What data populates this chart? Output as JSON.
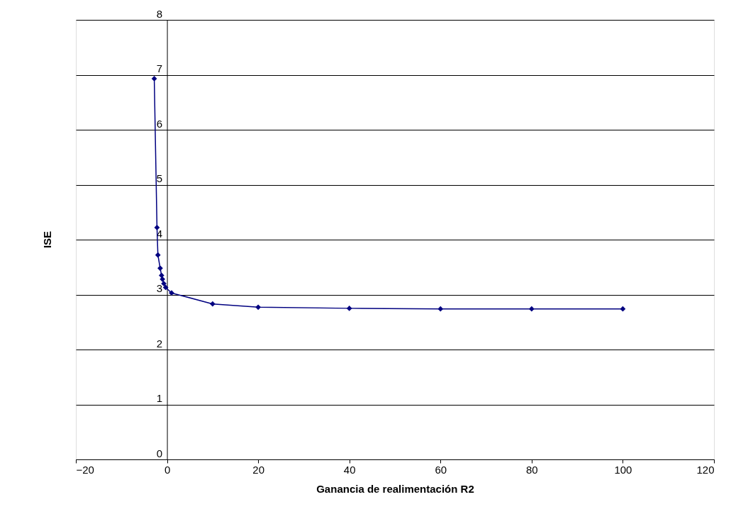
{
  "chart_data": {
    "type": "line",
    "xlabel": "Ganancia de realimentación R2",
    "ylabel": "ISE",
    "series": [
      {
        "color": "#000080",
        "x": [
          -2.8,
          -2.2,
          -2,
          -1.5,
          -1.2,
          -1,
          -0.7,
          -0.3,
          1,
          10,
          20,
          40,
          60,
          80,
          100
        ],
        "values": [
          6.93,
          4.22,
          3.72,
          3.48,
          3.35,
          3.28,
          3.2,
          3.13,
          3.03,
          2.83,
          2.77,
          2.75,
          2.74,
          2.74,
          2.74
        ]
      }
    ],
    "xlim": [
      -20,
      120
    ],
    "xticks": [
      -20,
      0,
      20,
      40,
      60,
      80,
      100,
      120
    ],
    "ylim": [
      0,
      8
    ],
    "yticks": [
      0,
      1,
      2,
      3,
      4,
      5,
      6,
      7,
      8
    ],
    "grid": "y",
    "marker": "diamond",
    "line_style": "solid",
    "legend": false
  }
}
